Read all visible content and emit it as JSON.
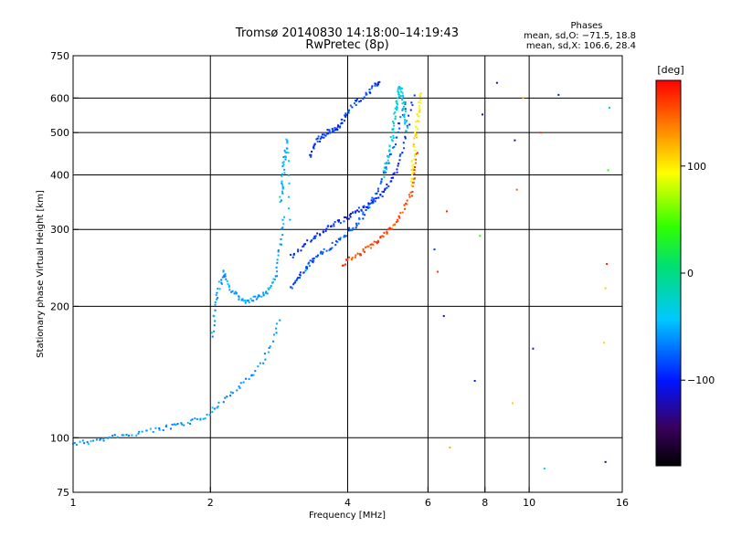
{
  "chart_data": {
    "type": "scatter",
    "title": "Tromsø 20140830 14:18:00–14:19:43",
    "subtitle": "RwPretec (8p)",
    "xlabel": "Frequency [MHz]",
    "ylabel": "Stationary phase Virtual Height [km]",
    "x_scale": "log",
    "y_scale": "log",
    "xlim": [
      1,
      16
    ],
    "ylim": [
      75,
      750
    ],
    "x_ticks": [
      1,
      2,
      4,
      6,
      8,
      10,
      16
    ],
    "y_ticks": [
      75,
      100,
      200,
      300,
      400,
      500,
      600,
      750
    ],
    "x_grid": [
      2,
      4,
      6,
      8,
      10
    ],
    "y_grid": [
      100,
      200,
      300,
      400,
      500,
      600
    ],
    "phases_box": {
      "title": "Phases",
      "line1": "mean, sd,O: −71.5, 18.8",
      "line2": "mean, sd,X: 106.6, 28.4"
    },
    "colorbar": {
      "label": "[deg]",
      "range": [
        -180,
        180
      ],
      "ticks": [
        100,
        0,
        -100
      ],
      "tick_labels": [
        "100",
        "0",
        "−100"
      ]
    },
    "traces": [
      {
        "x": [
          1.0,
          1.1,
          1.2,
          1.35,
          1.5,
          1.65,
          1.8,
          1.95,
          2.1,
          2.3,
          2.5,
          2.7,
          2.85
        ],
        "y": [
          97,
          98,
          100,
          102,
          104,
          106,
          108,
          112,
          120,
          130,
          140,
          160,
          190
        ],
        "phase": -60
      },
      {
        "x": [
          2.02,
          2.05,
          2.1,
          2.15,
          2.2,
          2.3,
          2.4,
          2.5,
          2.6,
          2.7,
          2.8,
          2.85,
          2.9
        ],
        "y": [
          170,
          200,
          225,
          240,
          220,
          210,
          205,
          208,
          212,
          220,
          240,
          280,
          330
        ],
        "phase": -55
      },
      {
        "x": [
          2.85,
          2.88,
          2.9,
          2.92,
          2.95,
          3.0
        ],
        "y": [
          350,
          380,
          420,
          450,
          480,
          300
        ],
        "phase": -50
      },
      {
        "x": [
          3.0,
          3.1,
          3.2,
          3.3,
          3.4,
          3.6,
          3.8,
          4.0,
          4.2,
          4.4,
          4.6,
          4.8,
          5.0,
          5.2,
          5.4
        ],
        "y": [
          220,
          230,
          240,
          250,
          260,
          270,
          280,
          295,
          310,
          330,
          360,
          400,
          450,
          520,
          600
        ],
        "phase": -80
      },
      {
        "x": [
          3.0,
          3.2,
          3.4,
          3.6,
          3.8,
          4.0,
          4.2,
          4.4,
          4.6,
          4.8,
          5.0,
          5.2,
          5.4,
          5.6
        ],
        "y": [
          260,
          275,
          290,
          300,
          310,
          320,
          330,
          340,
          350,
          365,
          390,
          430,
          500,
          620
        ],
        "phase": -95
      },
      {
        "x": [
          3.3,
          3.4,
          3.5,
          3.6,
          3.7,
          3.8,
          3.9,
          4.0,
          4.2,
          4.4,
          4.6,
          4.7
        ],
        "y": [
          440,
          470,
          490,
          500,
          505,
          510,
          530,
          560,
          590,
          610,
          640,
          650
        ],
        "phase": -90
      },
      {
        "x": [
          3.9,
          4.1,
          4.3,
          4.5,
          4.7,
          4.9,
          5.1,
          5.3,
          5.5,
          5.6,
          5.7
        ],
        "y": [
          250,
          258,
          265,
          275,
          285,
          295,
          310,
          330,
          360,
          400,
          460
        ],
        "phase": 155
      },
      {
        "x": [
          5.5,
          5.55,
          5.6,
          5.65,
          5.7,
          5.75,
          5.8
        ],
        "y": [
          380,
          420,
          460,
          500,
          540,
          580,
          620
        ],
        "phase": 100
      },
      {
        "x": [
          4.8,
          4.9,
          5.0,
          5.05,
          5.1,
          5.15,
          5.2,
          5.25,
          5.3,
          5.35,
          5.4
        ],
        "y": [
          400,
          440,
          480,
          520,
          560,
          600,
          640,
          620,
          580,
          540,
          500
        ],
        "phase": -30
      }
    ],
    "sparse_points": [
      {
        "x": 6.2,
        "y": 270,
        "phase": -90
      },
      {
        "x": 6.3,
        "y": 240,
        "phase": 160
      },
      {
        "x": 6.5,
        "y": 190,
        "phase": -110
      },
      {
        "x": 6.6,
        "y": 330,
        "phase": 170
      },
      {
        "x": 6.7,
        "y": 95,
        "phase": 120
      },
      {
        "x": 7.6,
        "y": 135,
        "phase": -100
      },
      {
        "x": 7.8,
        "y": 290,
        "phase": 40
      },
      {
        "x": 7.9,
        "y": 550,
        "phase": -130
      },
      {
        "x": 8.5,
        "y": 650,
        "phase": -120
      },
      {
        "x": 9.2,
        "y": 120,
        "phase": 110
      },
      {
        "x": 9.3,
        "y": 480,
        "phase": -130
      },
      {
        "x": 9.4,
        "y": 370,
        "phase": 150
      },
      {
        "x": 9.7,
        "y": 600,
        "phase": 120
      },
      {
        "x": 10.2,
        "y": 160,
        "phase": -110
      },
      {
        "x": 10.6,
        "y": 500,
        "phase": 160
      },
      {
        "x": 10.8,
        "y": 85,
        "phase": -40
      },
      {
        "x": 11.6,
        "y": 610,
        "phase": -100
      },
      {
        "x": 14.6,
        "y": 165,
        "phase": 110
      },
      {
        "x": 14.7,
        "y": 220,
        "phase": 110
      },
      {
        "x": 14.8,
        "y": 250,
        "phase": 170
      },
      {
        "x": 14.9,
        "y": 410,
        "phase": 40
      },
      {
        "x": 15.0,
        "y": 570,
        "phase": -30
      },
      {
        "x": 14.7,
        "y": 88,
        "phase": -150
      }
    ]
  }
}
